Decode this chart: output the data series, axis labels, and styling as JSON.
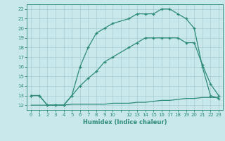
{
  "line1_x": [
    0,
    1,
    2,
    3,
    4,
    5,
    6,
    7,
    8,
    9,
    10,
    12,
    13,
    14,
    15,
    16,
    17,
    18,
    19,
    20,
    21,
    22,
    23
  ],
  "line1_y": [
    13,
    13,
    12,
    12,
    12,
    13,
    16,
    18,
    19.5,
    20,
    20.5,
    21,
    21.5,
    21.5,
    21.5,
    22,
    22,
    21.5,
    21,
    20,
    16,
    13,
    12.7
  ],
  "line2_x": [
    0,
    1,
    2,
    3,
    4,
    5,
    6,
    7,
    8,
    9,
    10,
    12,
    13,
    14,
    15,
    16,
    17,
    18,
    19,
    20,
    21,
    22,
    23
  ],
  "line2_y": [
    12,
    12,
    12,
    12,
    12,
    12.1,
    12.1,
    12.1,
    12.1,
    12.1,
    12.2,
    12.2,
    12.3,
    12.3,
    12.4,
    12.5,
    12.5,
    12.6,
    12.7,
    12.7,
    12.8,
    12.8,
    12.8
  ],
  "line3_x": [
    0,
    1,
    2,
    3,
    4,
    5,
    6,
    7,
    8,
    9,
    10,
    12,
    13,
    14,
    15,
    16,
    17,
    18,
    19,
    20,
    21,
    22,
    23
  ],
  "line3_y": [
    13,
    13,
    12,
    12,
    12,
    13,
    14,
    14.8,
    15.5,
    16.5,
    17,
    18,
    18.5,
    19,
    19,
    19,
    19,
    19,
    18.5,
    18.5,
    16.2,
    14.2,
    13
  ],
  "color": "#2e8b77",
  "bg_color": "#c8e8ec",
  "grid_color": "#a8cdd4",
  "xlabel": "Humidex (Indice chaleur)",
  "ylim": [
    11.5,
    22.5
  ],
  "xlim": [
    -0.5,
    23.5
  ],
  "yticks": [
    12,
    13,
    14,
    15,
    16,
    17,
    18,
    19,
    20,
    21,
    22
  ],
  "xtick_labels": [
    "0",
    "1",
    "2",
    "3",
    "4",
    "5",
    "6",
    "7",
    "8",
    "9",
    "10",
    "",
    "12",
    "13",
    "14",
    "15",
    "16",
    "17",
    "18",
    "19",
    "20",
    "21",
    "22",
    "23"
  ],
  "xtick_positions": [
    0,
    1,
    2,
    3,
    4,
    5,
    6,
    7,
    8,
    9,
    10,
    11,
    12,
    13,
    14,
    15,
    16,
    17,
    18,
    19,
    20,
    21,
    22,
    23
  ]
}
